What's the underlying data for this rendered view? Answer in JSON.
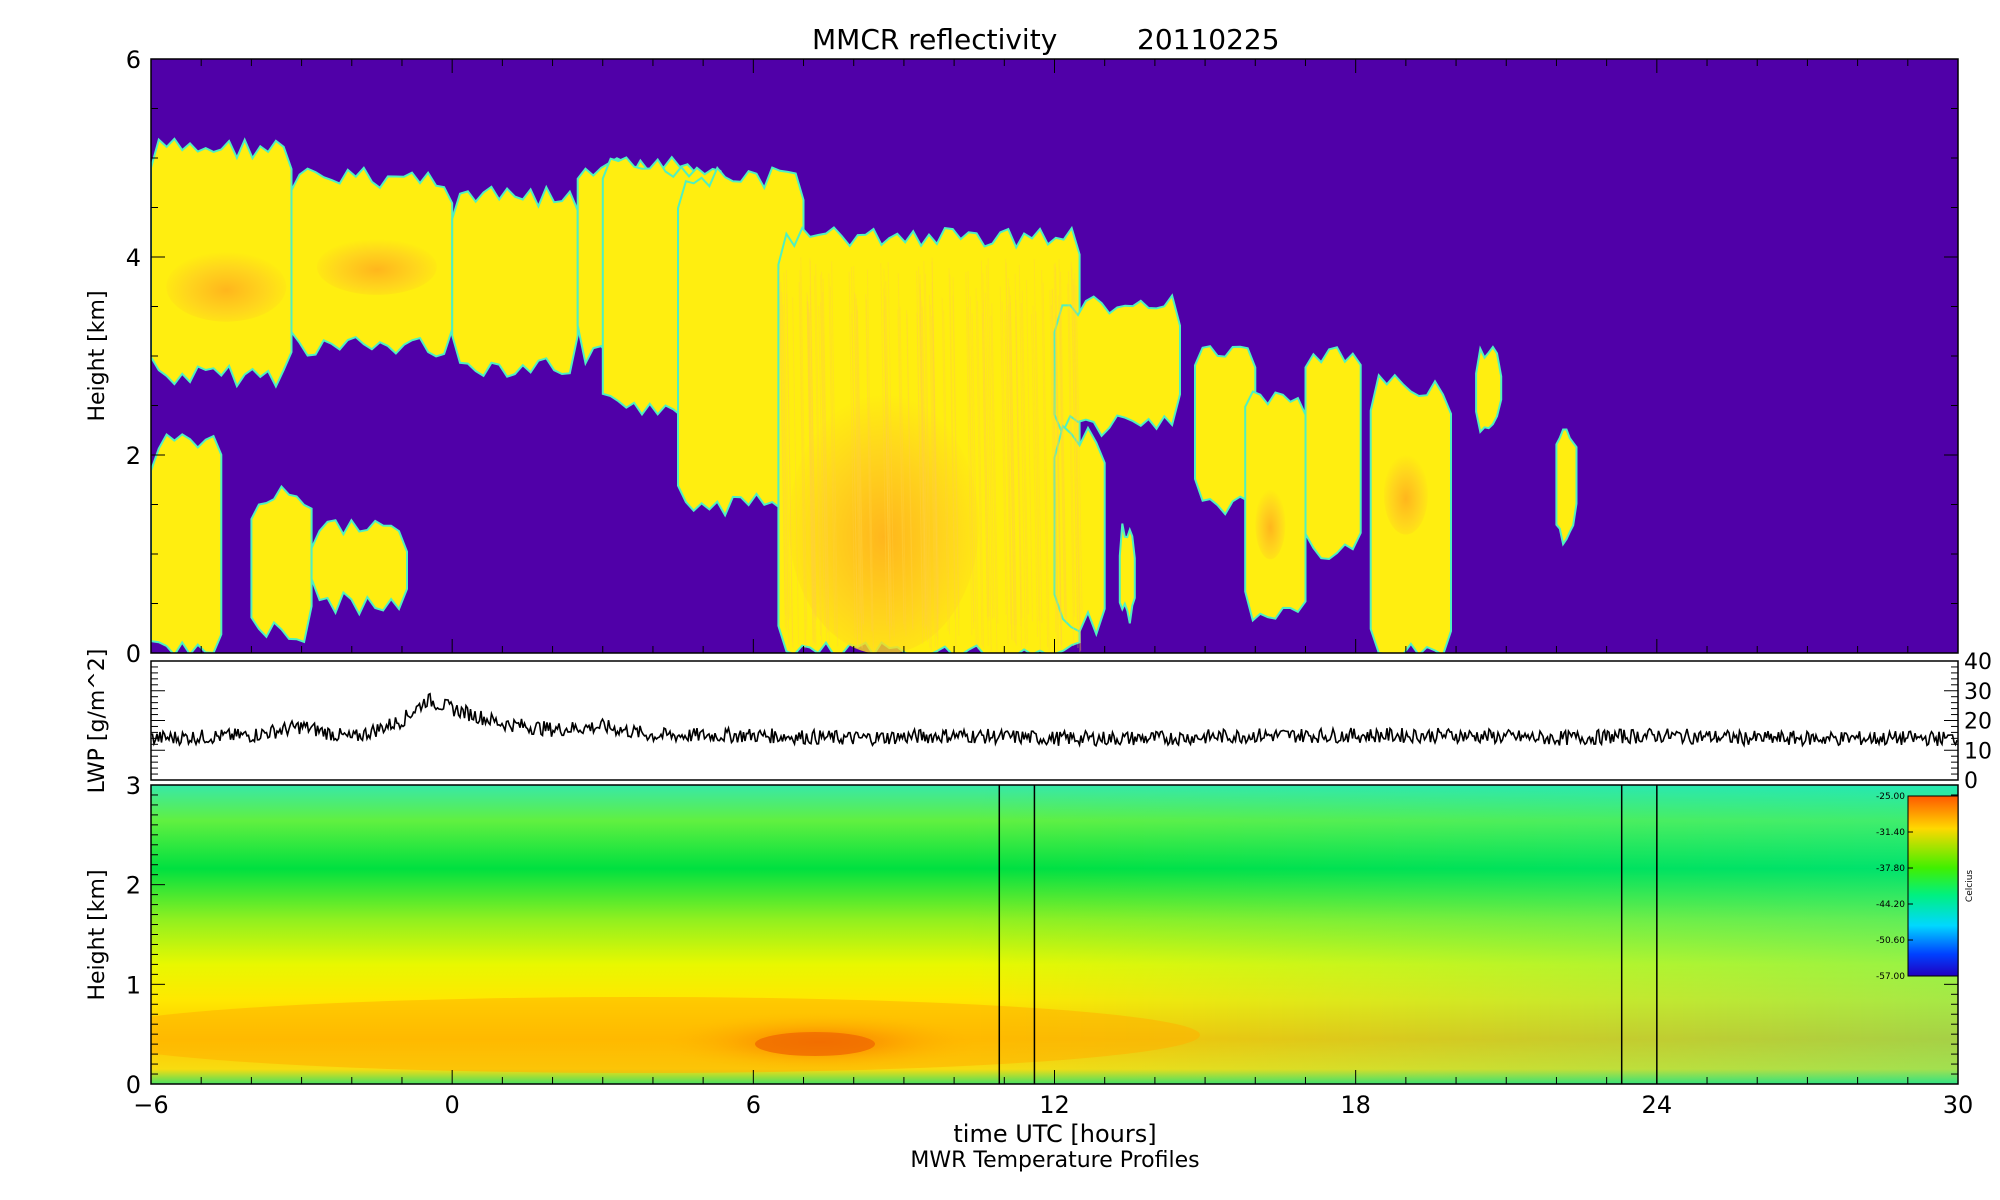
{
  "figure": {
    "title": "MMCR reflectivity",
    "date": "20110225",
    "xlabel": "time UTC [hours]",
    "bottom_caption": "MWR Temperature Profiles"
  },
  "chart_data": [
    {
      "type": "heatmap",
      "panel": "reflectivity",
      "ylabel": "Height [km]",
      "xlim": [
        -6,
        30
      ],
      "ylim": [
        0,
        6
      ],
      "xticks": [
        "-6",
        "0",
        "6",
        "12",
        "18",
        "24",
        "30"
      ],
      "yticks": [
        "0",
        "2",
        "4",
        "6"
      ],
      "colors": {
        "background": "#5000a8",
        "cloud": "#ffee10",
        "core": "#ffb020",
        "edge": "#50f0c0"
      },
      "cloud_layers": [
        {
          "t0": -6,
          "t1": -3.2,
          "base": 2.8,
          "top": 5.1
        },
        {
          "t0": -3.2,
          "t1": 0.0,
          "base": 3.1,
          "top": 4.8
        },
        {
          "t0": 0.0,
          "t1": 2.5,
          "base": 2.9,
          "top": 4.6
        },
        {
          "t0": 2.5,
          "t1": 5.0,
          "base": 3.0,
          "top": 4.9
        },
        {
          "t0": 3.0,
          "t1": 5.5,
          "base": 2.5,
          "top": 4.9
        },
        {
          "t0": 4.5,
          "t1": 7.0,
          "base": 1.5,
          "top": 4.8
        },
        {
          "t0": 6.5,
          "t1": 12.5,
          "base": 0.0,
          "top": 4.2
        },
        {
          "t0": 12.0,
          "t1": 14.5,
          "base": 2.3,
          "top": 3.5
        },
        {
          "t0": 12.0,
          "t1": 13.0,
          "base": 0.3,
          "top": 2.2
        },
        {
          "t0": 13.3,
          "t1": 13.6,
          "base": 0.4,
          "top": 1.2
        },
        {
          "t0": 14.8,
          "t1": 16.0,
          "base": 1.5,
          "top": 3.0
        },
        {
          "t0": 15.8,
          "t1": 17.0,
          "base": 0.4,
          "top": 2.6
        },
        {
          "t0": 17.0,
          "t1": 18.1,
          "base": 1.0,
          "top": 3.0
        },
        {
          "t0": 18.3,
          "t1": 19.9,
          "base": 0.0,
          "top": 2.7
        },
        {
          "t0": 20.4,
          "t1": 20.9,
          "base": 2.3,
          "top": 3.0
        },
        {
          "t0": 22.0,
          "t1": 22.4,
          "base": 1.2,
          "top": 2.2
        },
        {
          "t0": -6,
          "t1": -4.6,
          "base": 0.0,
          "top": 2.1
        },
        {
          "t0": -4.0,
          "t1": -2.8,
          "base": 0.2,
          "top": 1.6
        },
        {
          "t0": -2.8,
          "t1": -0.9,
          "base": 0.5,
          "top": 1.3
        }
      ]
    },
    {
      "type": "line",
      "panel": "lwp",
      "ylabel": "LWP [g/m^2]",
      "xlim": [
        -6,
        30
      ],
      "ylim": [
        0,
        40
      ],
      "yticks": [
        "0",
        "10",
        "20",
        "30",
        "40"
      ],
      "x": [
        -6,
        -4,
        -3,
        -2,
        -1,
        -0.5,
        0,
        1,
        2,
        3,
        4,
        6,
        8,
        10,
        12,
        14,
        16,
        18,
        20,
        22,
        24,
        26,
        28,
        30
      ],
      "y": [
        14,
        15,
        18,
        14,
        20,
        27,
        24,
        19,
        17,
        18,
        15,
        15,
        14,
        15,
        14,
        14,
        15,
        15,
        15,
        14,
        15,
        14,
        14,
        14
      ]
    },
    {
      "type": "heatmap",
      "panel": "temperature",
      "ylabel": "Height [km]",
      "xlim": [
        -6,
        30
      ],
      "ylim": [
        0,
        3
      ],
      "yticks": [
        "0",
        "1",
        "2",
        "3"
      ],
      "vertical_lines": [
        10.9,
        11.6,
        23.3,
        24.0
      ],
      "colorbar": {
        "unit": "Celcius",
        "min": -57,
        "max": -25,
        "ticks": [
          "-25.00",
          "-31.40",
          "-37.80",
          "-44.20",
          "-50.60",
          "-57.00"
        ]
      }
    }
  ]
}
